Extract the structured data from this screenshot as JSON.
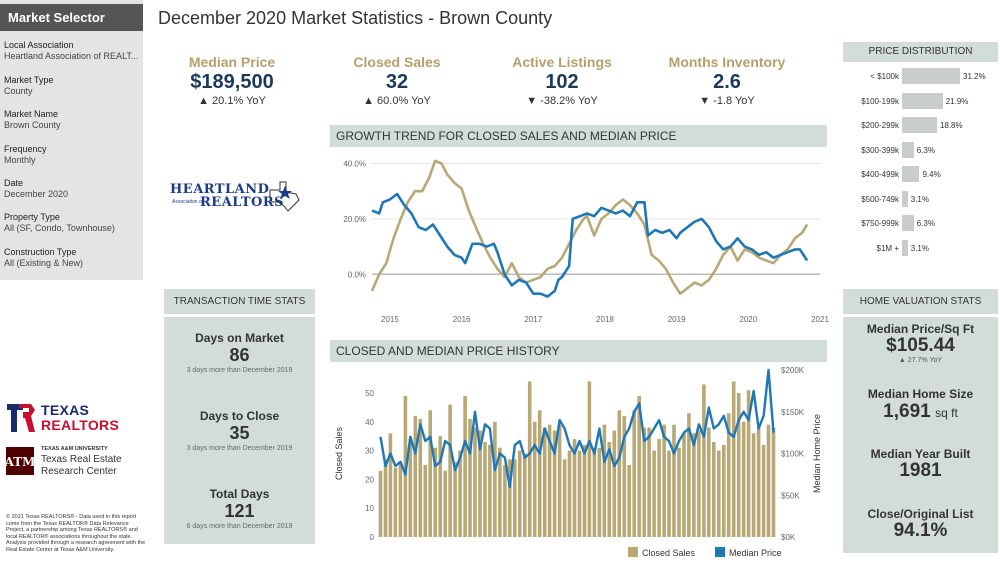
{
  "sidebar": {
    "title": "Market Selector",
    "fields": [
      {
        "label": "Local Association",
        "value": "Heartland Association of REALT..."
      },
      {
        "label": "Market Type",
        "value": "County"
      },
      {
        "label": "Market Name",
        "value": "Brown County"
      },
      {
        "label": "Frequency",
        "value": "Monthly"
      },
      {
        "label": "Date",
        "value": "December 2020"
      },
      {
        "label": "Property Type",
        "value": "All (SF, Condo, Townhouse)"
      },
      {
        "label": "Construction Type",
        "value": "All (Existing & New)"
      }
    ]
  },
  "page_title": "December 2020 Market Statistics - Brown County",
  "kpis": [
    {
      "label": "Median Price",
      "value": "$189,500",
      "yoy": "▲ 20.1% YoY"
    },
    {
      "label": "Closed Sales",
      "value": "32",
      "yoy": "▲ 60.0% YoY"
    },
    {
      "label": "Active Listings",
      "value": "102",
      "yoy": "▼ -38.2% YoY"
    },
    {
      "label": "Months Inventory",
      "value": "2.6",
      "yoy": "▼ -1.8 YoY"
    }
  ],
  "logos": {
    "heartland_line1": "HEARTLAND",
    "heartland_line2": "Association of",
    "heartland_line3": "REALTORS",
    "texas_line1": "TEXAS",
    "texas_line2": "REALTORS",
    "tamu_line1": "TEXAS A&M UNIVERSITY",
    "tamu_line2": "Texas Real Estate",
    "tamu_line3": "Research Center"
  },
  "transaction": {
    "title": "TRANSACTION TIME STATS",
    "stats": [
      {
        "title": "Days on Market",
        "value": "86",
        "note": "3 days more than December 2019"
      },
      {
        "title": "Days to Close",
        "value": "35",
        "note": "3 days more than December 2019"
      },
      {
        "title": "Total Days",
        "value": "121",
        "note": "6 days more than December 2019"
      }
    ]
  },
  "copyright": "© 2021 Texas REALTORS® - Data used in this report come from the Texas REALTOR® Data Relevance Project, a partnership among Texas REALTORS® and local REALTOR® associations throughout the state. Analysis provided through a research agreement with the Real Estate Center at Texas A&M University.",
  "growth_title": "GROWTH TREND FOR CLOSED SALES AND MEDIAN PRICE",
  "history_title": "CLOSED AND MEDIAN PRICE HISTORY",
  "price_distribution": {
    "title": "PRICE DISTRIBUTION",
    "rows": [
      {
        "label": "< $100k",
        "pct": 31.2,
        "text": "31.2%"
      },
      {
        "label": "$100-199k",
        "pct": 21.9,
        "text": "21.9%"
      },
      {
        "label": "$200-299k",
        "pct": 18.8,
        "text": "18.8%"
      },
      {
        "label": "$300-399k",
        "pct": 6.3,
        "text": "6.3%"
      },
      {
        "label": "$400-499k",
        "pct": 9.4,
        "text": "9.4%"
      },
      {
        "label": "$500-749k",
        "pct": 3.1,
        "text": "3.1%"
      },
      {
        "label": "$750-999k",
        "pct": 6.3,
        "text": "6.3%"
      },
      {
        "label": "$1M +",
        "pct": 3.1,
        "text": "3.1%"
      }
    ]
  },
  "home_valuation": {
    "title": "HOME VALUATION STATS",
    "price_sqft_title": "Median Price/Sq Ft",
    "price_sqft_value": "$105.44",
    "price_sqft_yoy": "▲ 27.7% YoY",
    "home_size_title": "Median Home Size",
    "home_size_value": "1,691",
    "home_size_unit": "sq ft",
    "year_built_title": "Median Year Built",
    "year_built_value": "1981",
    "close_list_title": "Close/Original List",
    "close_list_value": "94.1%"
  },
  "colors": {
    "closed_sales": "#b8a876",
    "median_price": "#1f77b4",
    "panel": "#d3ddd8"
  },
  "chart_data": [
    {
      "type": "line",
      "title": "GROWTH TREND FOR CLOSED SALES AND MEDIAN PRICE",
      "x_ticks": [
        "2015",
        "2016",
        "2017",
        "2018",
        "2019",
        "2020",
        "2021"
      ],
      "y_ticks": [
        "40.0%",
        "20.0%",
        "0.0%"
      ],
      "ylim": [
        -10,
        42
      ],
      "xlim": [
        2014.75,
        2021.0
      ],
      "series": [
        {
          "name": "Closed Sales",
          "points": [
            [
              2014.75,
              -6
            ],
            [
              2014.85,
              0
            ],
            [
              2014.95,
              4
            ],
            [
              2015.05,
              13
            ],
            [
              2015.15,
              20
            ],
            [
              2015.25,
              26
            ],
            [
              2015.35,
              30
            ],
            [
              2015.45,
              30
            ],
            [
              2015.55,
              35
            ],
            [
              2015.63,
              41
            ],
            [
              2015.72,
              40
            ],
            [
              2015.8,
              36
            ],
            [
              2015.9,
              33
            ],
            [
              2016.0,
              31
            ],
            [
              2016.1,
              23
            ],
            [
              2016.2,
              17
            ],
            [
              2016.3,
              11
            ],
            [
              2016.4,
              6
            ],
            [
              2016.5,
              2
            ],
            [
              2016.6,
              -1
            ],
            [
              2016.7,
              4
            ],
            [
              2016.8,
              -1
            ],
            [
              2016.9,
              -3
            ],
            [
              2017.0,
              -2
            ],
            [
              2017.1,
              -1
            ],
            [
              2017.2,
              2
            ],
            [
              2017.3,
              3
            ],
            [
              2017.4,
              6
            ],
            [
              2017.5,
              11
            ],
            [
              2017.6,
              16
            ],
            [
              2017.7,
              20
            ],
            [
              2017.75,
              21
            ],
            [
              2017.85,
              14
            ],
            [
              2017.95,
              20
            ],
            [
              2018.05,
              22
            ],
            [
              2018.15,
              25
            ],
            [
              2018.25,
              27
            ],
            [
              2018.35,
              25
            ],
            [
              2018.45,
              22
            ],
            [
              2018.55,
              18
            ],
            [
              2018.65,
              7
            ],
            [
              2018.75,
              5
            ],
            [
              2018.85,
              2
            ],
            [
              2018.95,
              -3
            ],
            [
              2019.05,
              -7
            ],
            [
              2019.15,
              -5
            ],
            [
              2019.25,
              -3
            ],
            [
              2019.35,
              -4
            ],
            [
              2019.45,
              -2
            ],
            [
              2019.55,
              2
            ],
            [
              2019.65,
              7
            ],
            [
              2019.75,
              10
            ],
            [
              2019.85,
              5
            ],
            [
              2019.95,
              9
            ],
            [
              2020.05,
              8
            ],
            [
              2020.15,
              6
            ],
            [
              2020.25,
              5
            ],
            [
              2020.35,
              4
            ],
            [
              2020.45,
              7
            ],
            [
              2020.55,
              9
            ],
            [
              2020.65,
              13
            ],
            [
              2020.75,
              15
            ],
            [
              2020.82,
              18
            ]
          ]
        },
        {
          "name": "Median Price",
          "points": [
            [
              2014.75,
              23
            ],
            [
              2014.85,
              22
            ],
            [
              2014.9,
              26
            ],
            [
              2015.0,
              27
            ],
            [
              2015.1,
              29
            ],
            [
              2015.2,
              25
            ],
            [
              2015.3,
              22
            ],
            [
              2015.4,
              17
            ],
            [
              2015.5,
              16
            ],
            [
              2015.6,
              18
            ],
            [
              2015.7,
              14
            ],
            [
              2015.8,
              10
            ],
            [
              2015.9,
              7
            ],
            [
              2016.0,
              6
            ],
            [
              2016.05,
              4
            ],
            [
              2016.15,
              11
            ],
            [
              2016.25,
              11
            ],
            [
              2016.35,
              10
            ],
            [
              2016.45,
              11
            ],
            [
              2016.5,
              8
            ],
            [
              2016.6,
              0
            ],
            [
              2016.7,
              -4
            ],
            [
              2016.8,
              -2
            ],
            [
              2016.9,
              -3
            ],
            [
              2017.0,
              -7
            ],
            [
              2017.1,
              -7
            ],
            [
              2017.2,
              -8
            ],
            [
              2017.3,
              -6
            ],
            [
              2017.35,
              -2
            ],
            [
              2017.4,
              -1
            ],
            [
              2017.5,
              3
            ],
            [
              2017.55,
              20
            ],
            [
              2017.65,
              21
            ],
            [
              2017.75,
              22
            ],
            [
              2017.85,
              21
            ],
            [
              2017.95,
              24
            ],
            [
              2018.05,
              23
            ],
            [
              2018.15,
              22
            ],
            [
              2018.25,
              23
            ],
            [
              2018.35,
              21
            ],
            [
              2018.45,
              26
            ],
            [
              2018.55,
              26
            ],
            [
              2018.6,
              14
            ],
            [
              2018.7,
              16
            ],
            [
              2018.8,
              15
            ],
            [
              2018.9,
              16
            ],
            [
              2019.0,
              13
            ],
            [
              2019.05,
              15
            ],
            [
              2019.15,
              17
            ],
            [
              2019.25,
              19
            ],
            [
              2019.35,
              20
            ],
            [
              2019.45,
              17
            ],
            [
              2019.55,
              12
            ],
            [
              2019.65,
              9
            ],
            [
              2019.75,
              10
            ],
            [
              2019.85,
              13
            ],
            [
              2019.95,
              10
            ],
            [
              2020.05,
              9
            ],
            [
              2020.15,
              7
            ],
            [
              2020.25,
              8
            ],
            [
              2020.35,
              6
            ],
            [
              2020.45,
              7
            ],
            [
              2020.55,
              8
            ],
            [
              2020.65,
              9
            ],
            [
              2020.72,
              9
            ],
            [
              2020.82,
              5
            ]
          ]
        }
      ]
    },
    {
      "type": "bar",
      "title": "CLOSED AND MEDIAN PRICE HISTORY",
      "ylabel": "Closed Sales",
      "y2label": "Median Home Price",
      "y_ticks": [
        "0",
        "10",
        "20",
        "30",
        "40",
        "50"
      ],
      "y2_ticks": [
        "$0K",
        "$50K",
        "$100K",
        "$150K",
        "$200K"
      ],
      "ylim": [
        0,
        58
      ],
      "y2lim": [
        0,
        200000
      ],
      "legend": [
        "Closed Sales",
        "Median Price"
      ],
      "series": [
        {
          "name": "Closed Sales",
          "values": [
            23,
            27,
            36,
            24,
            26,
            49,
            34,
            42,
            41,
            25,
            44,
            31,
            35,
            23,
            46,
            26,
            30,
            49,
            41,
            38,
            37,
            33,
            32,
            40,
            31,
            25,
            27,
            27,
            30,
            29,
            54,
            40,
            44,
            38,
            39,
            37,
            39,
            27,
            30,
            34,
            30,
            32,
            54,
            31,
            31,
            39,
            33,
            37,
            44,
            42,
            25,
            44,
            49,
            38,
            38,
            30,
            34,
            39,
            30,
            39,
            31,
            36,
            43,
            36,
            37,
            53,
            38,
            33,
            30,
            32,
            43,
            54,
            50,
            40,
            51,
            36,
            38,
            32,
            39,
            38
          ]
        },
        {
          "name": "Median Price",
          "values": [
            120000,
            85000,
            100000,
            85000,
            90000,
            75000,
            120000,
            100000,
            135000,
            115000,
            120000,
            85000,
            90000,
            115000,
            110000,
            80000,
            95000,
            115000,
            100000,
            150000,
            105000,
            135000,
            130000,
            80000,
            100000,
            95000,
            60000,
            110000,
            115000,
            95000,
            100000,
            110000,
            100000,
            130000,
            115000,
            100000,
            140000,
            130000,
            110000,
            100000,
            115000,
            100000,
            115000,
            100000,
            130000,
            90000,
            105000,
            85000,
            95000,
            120000,
            130000,
            150000,
            160000,
            115000,
            120000,
            130000,
            140000,
            120000,
            115000,
            100000,
            115000,
            125000,
            130000,
            110000,
            135000,
            120000,
            155000,
            130000,
            135000,
            145000,
            125000,
            120000,
            140000,
            150000,
            140000,
            175000,
            130000,
            145000,
            200000,
            125000
          ]
        }
      ]
    }
  ]
}
